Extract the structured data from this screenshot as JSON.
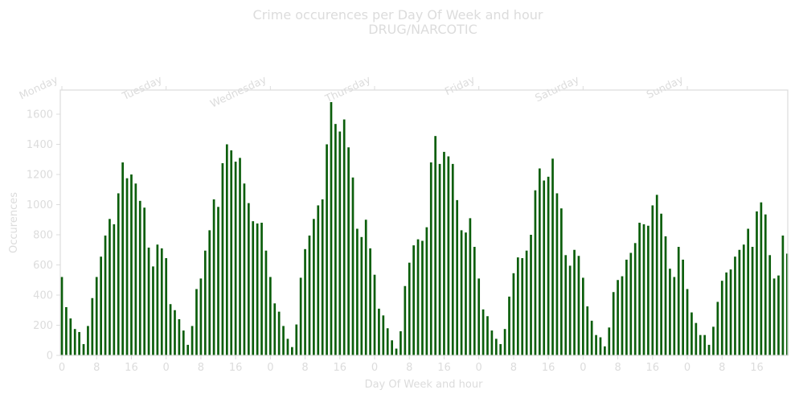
{
  "chart_data": {
    "type": "bar",
    "title": "Crime occurences per Day Of Week and hour",
    "subtitle": "DRUG/NARCOTIC",
    "xlabel": "Day Of Week and hour",
    "ylabel": "Occurences",
    "ylim": [
      0,
      1760
    ],
    "yticks": [
      0,
      200,
      400,
      600,
      800,
      1000,
      1200,
      1400,
      1600
    ],
    "xtick_labels": [
      "0",
      "8",
      "16",
      "0",
      "8",
      "16",
      "0",
      "8",
      "16",
      "0",
      "8",
      "16",
      "0",
      "8",
      "16",
      "0",
      "8",
      "16",
      "0",
      "8",
      "16"
    ],
    "xtick_positions": [
      0,
      8,
      16,
      24,
      32,
      40,
      48,
      56,
      64,
      72,
      80,
      88,
      96,
      104,
      112,
      120,
      128,
      136,
      144,
      152,
      160
    ],
    "days": [
      "Monday",
      "Tuesday",
      "Wednesday",
      "Thursday",
      "Friday",
      "Saturday",
      "Sunday"
    ],
    "bar_color": "#0b5e0b",
    "grid": false,
    "values": [
      520,
      320,
      245,
      175,
      155,
      75,
      195,
      380,
      520,
      655,
      795,
      905,
      870,
      1075,
      1280,
      1175,
      1200,
      1140,
      1025,
      980,
      715,
      590,
      735,
      710,
      645,
      340,
      300,
      240,
      165,
      70,
      195,
      440,
      510,
      695,
      830,
      1035,
      985,
      1275,
      1400,
      1360,
      1285,
      1310,
      1140,
      1010,
      890,
      875,
      880,
      695,
      520,
      345,
      290,
      195,
      110,
      55,
      205,
      515,
      705,
      795,
      905,
      995,
      1035,
      1400,
      1680,
      1535,
      1485,
      1565,
      1380,
      1180,
      840,
      785,
      900,
      710,
      535,
      310,
      265,
      180,
      100,
      45,
      160,
      460,
      615,
      730,
      770,
      760,
      850,
      1280,
      1455,
      1270,
      1350,
      1320,
      1270,
      1030,
      830,
      815,
      910,
      720,
      510,
      305,
      260,
      165,
      110,
      75,
      175,
      390,
      545,
      650,
      645,
      695,
      800,
      1095,
      1240,
      1160,
      1185,
      1305,
      1075,
      975,
      665,
      595,
      700,
      660,
      515,
      325,
      230,
      135,
      120,
      60,
      185,
      420,
      500,
      525,
      635,
      680,
      745,
      880,
      870,
      860,
      995,
      1065,
      940,
      790,
      575,
      520,
      720,
      635,
      440,
      285,
      215,
      135,
      135,
      70,
      190,
      355,
      495,
      550,
      570,
      655,
      700,
      735,
      840,
      720,
      955,
      1015,
      935,
      665,
      510,
      530,
      795,
      675
    ]
  }
}
